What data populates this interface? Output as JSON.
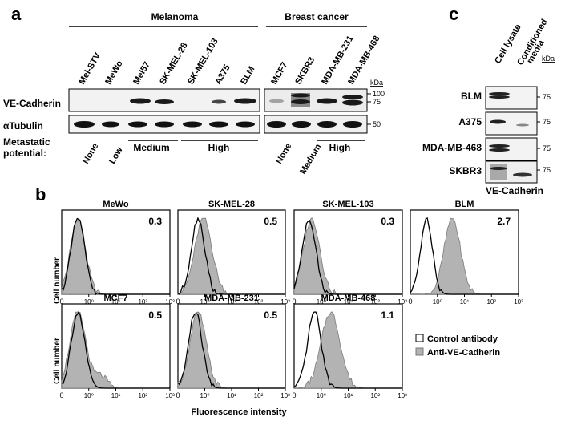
{
  "panel_a": {
    "letter": "a",
    "group_melanoma": "Melanoma",
    "group_breast": "Breast cancer",
    "lanes_melanoma": [
      "Mel-STV",
      "MeWo",
      "Mel57",
      "SK-MEL-28",
      "SK-MEL-103",
      "A375",
      "BLM"
    ],
    "lanes_breast": [
      "MCF7",
      "SKBR3",
      "MDA-MB-231",
      "MDA-MB-468"
    ],
    "row_vecad": "VE-Cadherin",
    "row_tubulin": "αTubulin",
    "kda_label": "kDa",
    "kda_100": "100",
    "kda_75": "75",
    "kda_50": "50",
    "metastatic_label_1": "Metastatic",
    "metastatic_label_2": "potential:",
    "potential_melanoma": [
      "None",
      "Low"
    ],
    "potential_medium": "Medium",
    "potential_high": "High",
    "potential_breast_none": "None",
    "potential_breast_medium": "Medium",
    "potential_breast_high": "High"
  },
  "panel_c": {
    "letter": "c",
    "col_lysate": "Cell lysate",
    "col_cond_1": "Conditioned",
    "col_cond_2": "media",
    "kda_label": "kDa",
    "rows": [
      {
        "name": "BLM",
        "kda": "75"
      },
      {
        "name": "A375",
        "kda": "75"
      },
      {
        "name": "MDA-MB-468",
        "kda": "75"
      },
      {
        "name": "SKBR3",
        "kda": "75"
      }
    ],
    "footer": "VE-Cadherin"
  },
  "panel_b": {
    "letter": "b",
    "y_label": "Cell number",
    "x_label": "Fluorescence intensity",
    "tick_labels": [
      "10⁰",
      "10¹",
      "10²",
      "10³"
    ],
    "zero_label": "0",
    "legend_control": "Control antibody",
    "legend_anti": "Anti-VE-Cadherin",
    "colors": {
      "control": "#000000",
      "anti_fill": "#b3b3b3",
      "anti_stroke": "#7a7a7a"
    },
    "plots": [
      {
        "title": "MeWo",
        "ratio": "0.3"
      },
      {
        "title": "SK-MEL-28",
        "ratio": "0.5"
      },
      {
        "title": "SK-MEL-103",
        "ratio": "0.3"
      },
      {
        "title": "BLM",
        "ratio": "2.7"
      },
      {
        "title": "MCF7",
        "ratio": "0.5"
      },
      {
        "title": "MDA-MB-231",
        "ratio": "0.5"
      },
      {
        "title": "MDA-MB-468",
        "ratio": "1.1"
      }
    ]
  }
}
